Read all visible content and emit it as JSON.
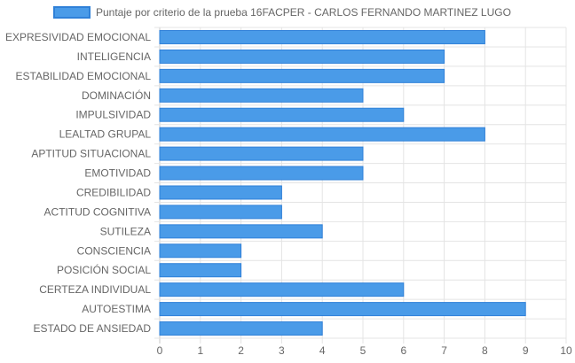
{
  "chart_data": {
    "type": "bar",
    "orientation": "horizontal",
    "categories": [
      "EXPRESIVIDAD EMOCIONAL",
      "INTELIGENCIA",
      "ESTABILIDAD EMOCIONAL",
      "DOMINACIÓN",
      "IMPULSIVIDAD",
      "LEALTAD GRUPAL",
      "APTITUD SITUACIONAL",
      "EMOTIVIDAD",
      "CREDIBILIDAD",
      "ACTITUD COGNITIVA",
      "SUTILEZA",
      "CONSCIENCIA",
      "POSICIÓN SOCIAL",
      "CERTEZA INDIVIDUAL",
      "AUTOESTIMA",
      "ESTADO DE ANSIEDAD"
    ],
    "series": [
      {
        "name": "Puntaje por criterio de la prueba 16FACPER - CARLOS FERNANDO MARTINEZ LUGO",
        "values": [
          8,
          7,
          7,
          5,
          6,
          8,
          5,
          5,
          3,
          3,
          4,
          2,
          2,
          6,
          9,
          4
        ],
        "color": "#4a9be8",
        "border_color": "#2f80d8"
      }
    ],
    "xlim": [
      0,
      10
    ],
    "xticks": [
      "0",
      "1",
      "2",
      "3",
      "4",
      "5",
      "6",
      "7",
      "8",
      "9",
      "10"
    ],
    "grid": true,
    "legend_position": "top"
  }
}
